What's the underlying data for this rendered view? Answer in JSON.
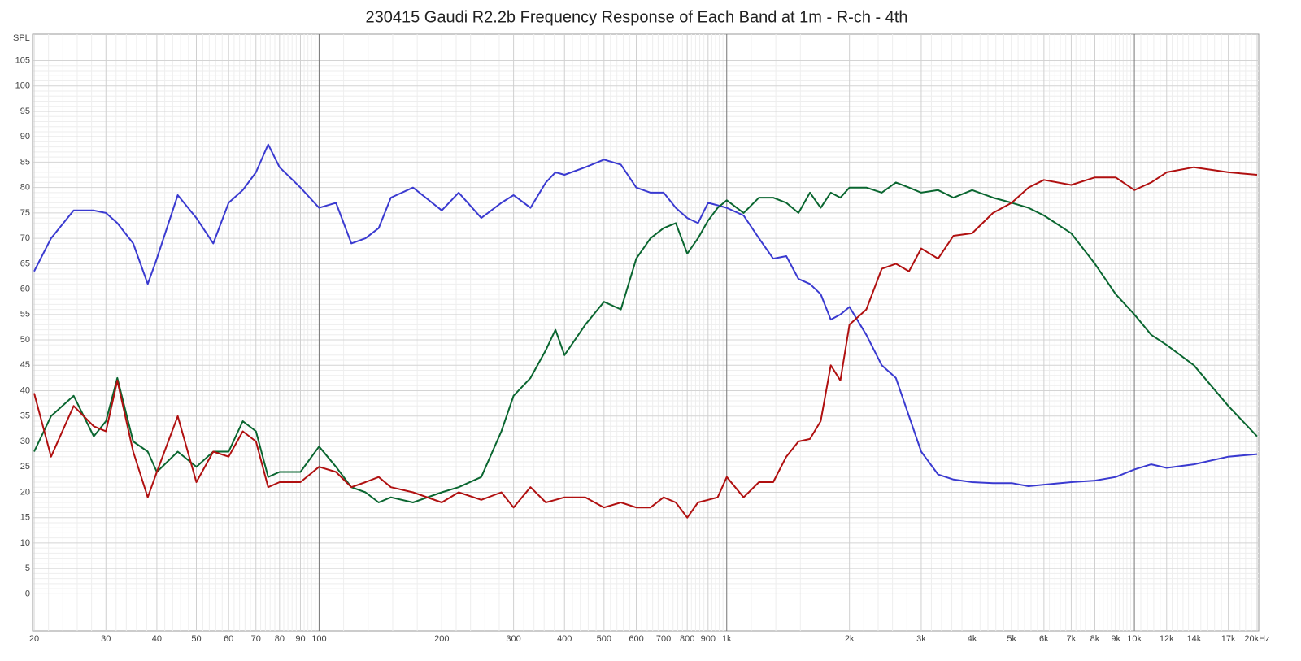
{
  "chart_data": {
    "type": "line",
    "title": "230415 Gaudi R2.2b Frequency Response of Each Band at 1m - R-ch - 4th",
    "y_label": "SPL",
    "log_x": true,
    "grid": true,
    "xlim": [
      20,
      20000
    ],
    "ylim": [
      -7.3,
      110.2
    ],
    "xticks": [
      20,
      30,
      40,
      50,
      60,
      70,
      80,
      90,
      100,
      200,
      300,
      400,
      500,
      600,
      700,
      800,
      900,
      {
        "value": 1000,
        "label": "1k"
      },
      {
        "value": 2000,
        "label": "2k"
      },
      {
        "value": 3000,
        "label": "3k"
      },
      {
        "value": 4000,
        "label": "4k"
      },
      {
        "value": 5000,
        "label": "5k"
      },
      {
        "value": 6000,
        "label": "6k"
      },
      {
        "value": 7000,
        "label": "7k"
      },
      {
        "value": 8000,
        "label": "8k"
      },
      {
        "value": 9000,
        "label": "9k"
      },
      {
        "value": 10000,
        "label": "10k"
      },
      {
        "value": 12000,
        "label": "12k"
      },
      {
        "value": 14000,
        "label": "14k"
      },
      {
        "value": 17000,
        "label": "17k"
      },
      {
        "value": 20000,
        "label": "20kHz"
      }
    ],
    "yticks": [
      0,
      5,
      10,
      15,
      20,
      25,
      30,
      35,
      40,
      45,
      50,
      55,
      60,
      65,
      70,
      75,
      80,
      85,
      90,
      95,
      100,
      105
    ],
    "x": [
      20,
      22,
      25,
      28,
      30,
      32,
      35,
      38,
      40,
      45,
      50,
      55,
      60,
      65,
      70,
      75,
      80,
      90,
      100,
      110,
      120,
      130,
      140,
      150,
      170,
      200,
      220,
      250,
      280,
      300,
      330,
      360,
      380,
      400,
      450,
      500,
      550,
      600,
      650,
      700,
      750,
      800,
      850,
      900,
      950,
      1000,
      1100,
      1200,
      1300,
      1400,
      1500,
      1600,
      1700,
      1800,
      1900,
      2000,
      2200,
      2400,
      2600,
      2800,
      3000,
      3300,
      3600,
      4000,
      4500,
      5000,
      5500,
      6000,
      7000,
      8000,
      9000,
      10000,
      11000,
      12000,
      14000,
      17000,
      20000
    ],
    "series": [
      {
        "color": "#3a3ad0",
        "values": [
          63.5,
          70,
          75.5,
          75.5,
          75,
          73,
          69,
          61,
          66,
          78.5,
          74,
          69,
          77,
          79.5,
          83,
          88.5,
          84,
          80,
          76,
          77,
          69,
          70,
          72,
          78,
          80,
          75.5,
          79,
          74,
          77,
          78.5,
          76,
          81,
          83,
          82.5,
          84,
          85.5,
          84.5,
          80,
          79,
          79,
          76,
          74,
          73,
          77,
          76.5,
          76,
          74.5,
          70,
          66,
          66.5,
          62,
          61,
          59,
          54,
          55,
          56.5,
          51,
          45,
          42.5,
          35,
          28,
          23.5,
          22.5,
          22,
          21.8,
          21.8,
          21.2,
          21.5,
          22,
          22.3,
          23,
          24.5,
          25.5,
          24.8,
          25.5,
          27,
          27.5
        ]
      },
      {
        "color": "#0a6630",
        "values": [
          28,
          35,
          39,
          31,
          34,
          42.5,
          30,
          28,
          24,
          28,
          25,
          28,
          28,
          34,
          32,
          23,
          24,
          24,
          29,
          25,
          21,
          20,
          18,
          19,
          18,
          20,
          21,
          23,
          32,
          39,
          42.5,
          48,
          52,
          47,
          53,
          57.5,
          56,
          66,
          70,
          72,
          73,
          67,
          70,
          73.5,
          76,
          77.5,
          75,
          78,
          78,
          77,
          75,
          79,
          76,
          79,
          78,
          80,
          80,
          79,
          81,
          80,
          79,
          79.5,
          78,
          79.5,
          78,
          77,
          76,
          74.5,
          71,
          65,
          59,
          55,
          51,
          49,
          45,
          37,
          31
        ]
      },
      {
        "color": "#b01010",
        "values": [
          39.5,
          27,
          37,
          33,
          32,
          42,
          28,
          19,
          24,
          35,
          22,
          28,
          27,
          32,
          30,
          21,
          22,
          22,
          25,
          24,
          21,
          22,
          23,
          21,
          20,
          18,
          20,
          18.5,
          20,
          17,
          21,
          18,
          18.5,
          19,
          19,
          17,
          18,
          17,
          17,
          19,
          18,
          15,
          18,
          18.5,
          19,
          23,
          19,
          22,
          22,
          27,
          30,
          30.5,
          34,
          45,
          42,
          53,
          56,
          64,
          65,
          63.5,
          68,
          66,
          70.5,
          71,
          75,
          77,
          80,
          81.5,
          80.5,
          82,
          82,
          79.5,
          81,
          83,
          84,
          83,
          82.5
        ]
      }
    ]
  }
}
